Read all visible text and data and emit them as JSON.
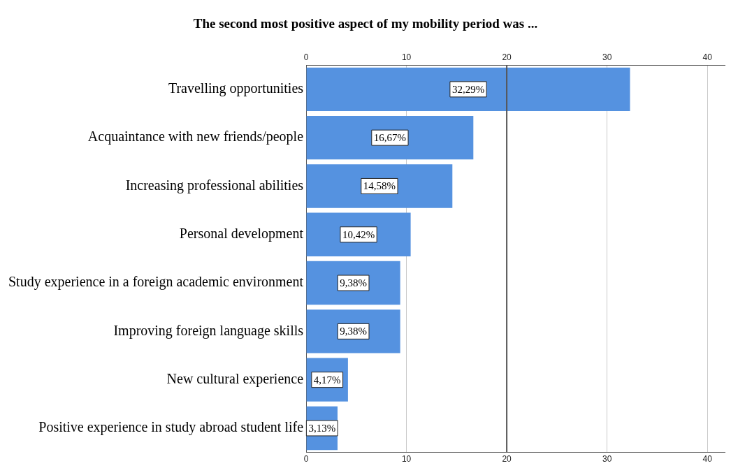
{
  "chart_data": {
    "type": "bar",
    "orientation": "horizontal",
    "title": "The second most positive aspect of my mobility period was ...",
    "categories": [
      "Travelling opportunities",
      "Acquaintance with new friends/people",
      "Increasing professional abilities",
      "Personal development",
      "Study experience in a foreign academic environment",
      "Improving foreign language skills",
      "New cultural experience",
      "Positive experience in study abroad student life"
    ],
    "values": [
      32.29,
      16.67,
      14.58,
      10.42,
      9.38,
      9.38,
      4.17,
      3.13
    ],
    "value_labels": [
      "32,29%",
      "16,67%",
      "14,58%",
      "10,42%",
      "9,38%",
      "9,38%",
      "4,17%",
      "3,13%"
    ],
    "color": "#5592e0",
    "xlim": [
      0,
      41.8
    ],
    "xticks": [
      0,
      10,
      20,
      30,
      40
    ],
    "x2lim": [
      0,
      41.8
    ],
    "x2ticks": [
      0,
      10,
      20,
      30,
      40
    ],
    "ref_lines": [
      {
        "axis": "x",
        "value": 20,
        "color": "#555555"
      }
    ],
    "grid": "x",
    "legend": false
  }
}
